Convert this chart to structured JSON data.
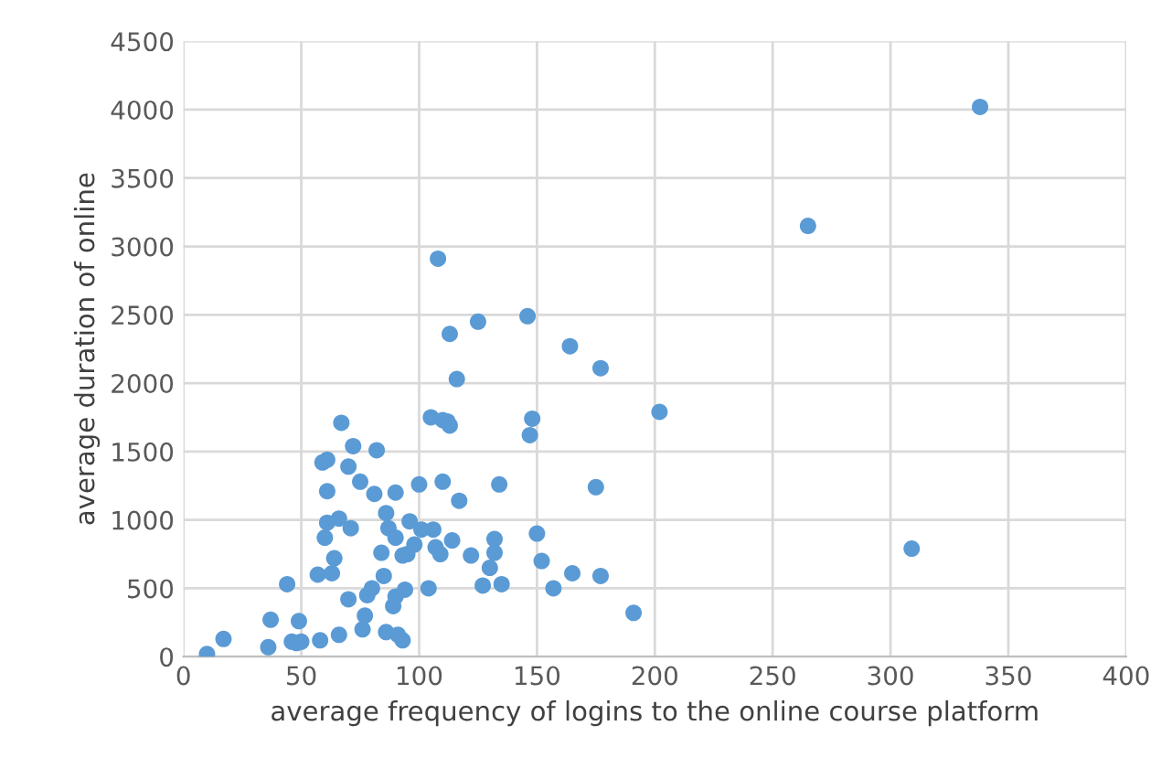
{
  "chart_data": {
    "type": "scatter",
    "xlabel": "average frequency of logins to the online course platform",
    "ylabel": "average duration of online",
    "x": [
      10,
      17,
      36,
      37,
      44,
      46,
      48,
      49,
      50,
      57,
      58,
      59,
      60,
      61,
      61,
      61,
      63,
      64,
      66,
      66,
      67,
      70,
      70,
      71,
      72,
      75,
      76,
      77,
      78,
      80,
      81,
      82,
      84,
      85,
      86,
      86,
      87,
      89,
      90,
      90,
      90,
      91,
      93,
      93,
      94,
      95,
      96,
      98,
      100,
      101,
      104,
      105,
      106,
      107,
      108,
      109,
      110,
      110,
      112,
      113,
      113,
      114,
      116,
      117,
      122,
      125,
      127,
      130,
      132,
      132,
      134,
      135,
      146,
      147,
      148,
      150,
      152,
      157,
      164,
      165,
      175,
      177,
      177,
      191,
      202,
      265,
      309,
      338
    ],
    "values": [
      20,
      130,
      70,
      270,
      530,
      110,
      100,
      260,
      110,
      600,
      120,
      1420,
      870,
      1440,
      1210,
      980,
      610,
      720,
      160,
      1010,
      1710,
      1390,
      420,
      940,
      1540,
      1280,
      200,
      300,
      450,
      500,
      1190,
      1510,
      760,
      590,
      1050,
      180,
      940,
      370,
      1200,
      870,
      440,
      160,
      740,
      120,
      490,
      750,
      990,
      820,
      1260,
      930,
      500,
      1750,
      930,
      800,
      2910,
      750,
      1730,
      1280,
      1720,
      2360,
      1690,
      850,
      2030,
      1140,
      740,
      2450,
      520,
      650,
      760,
      860,
      1260,
      530,
      2490,
      1620,
      1740,
      900,
      700,
      500,
      2270,
      610,
      1240,
      2110,
      590,
      320,
      1790,
      3150,
      790,
      4020
    ],
    "color": "#5b9bd5",
    "marker": "circle",
    "grid": true,
    "xlim": [
      0,
      400
    ],
    "xticks": [
      0,
      50,
      100,
      150,
      200,
      250,
      300,
      350,
      400
    ],
    "ylim": [
      0,
      4500
    ],
    "yticks": [
      0,
      500,
      1000,
      1500,
      2000,
      2500,
      3000,
      3500,
      4000,
      4500
    ]
  }
}
